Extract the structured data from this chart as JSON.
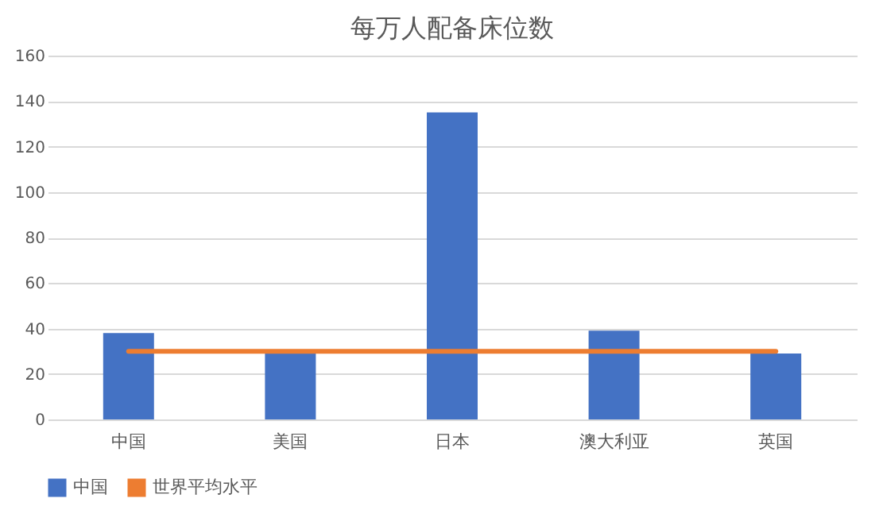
{
  "chart_data": {
    "type": "bar",
    "title": "每万人配备床位数",
    "categories": [
      "中国",
      "美国",
      "日本",
      "澳大利亚",
      "英国"
    ],
    "series": [
      {
        "name": "中国",
        "color": "#4472c4",
        "values": [
          38,
          29,
          135,
          39,
          29
        ]
      },
      {
        "name": "世界平均水平",
        "type": "line",
        "color": "#ed7d31",
        "values": [
          30,
          30,
          30,
          30,
          30
        ]
      }
    ],
    "ylim": [
      0,
      160
    ],
    "yticks": [
      0,
      20,
      40,
      60,
      80,
      100,
      120,
      140,
      160
    ],
    "grid": "y",
    "legend": "bottom",
    "marker": "none"
  }
}
